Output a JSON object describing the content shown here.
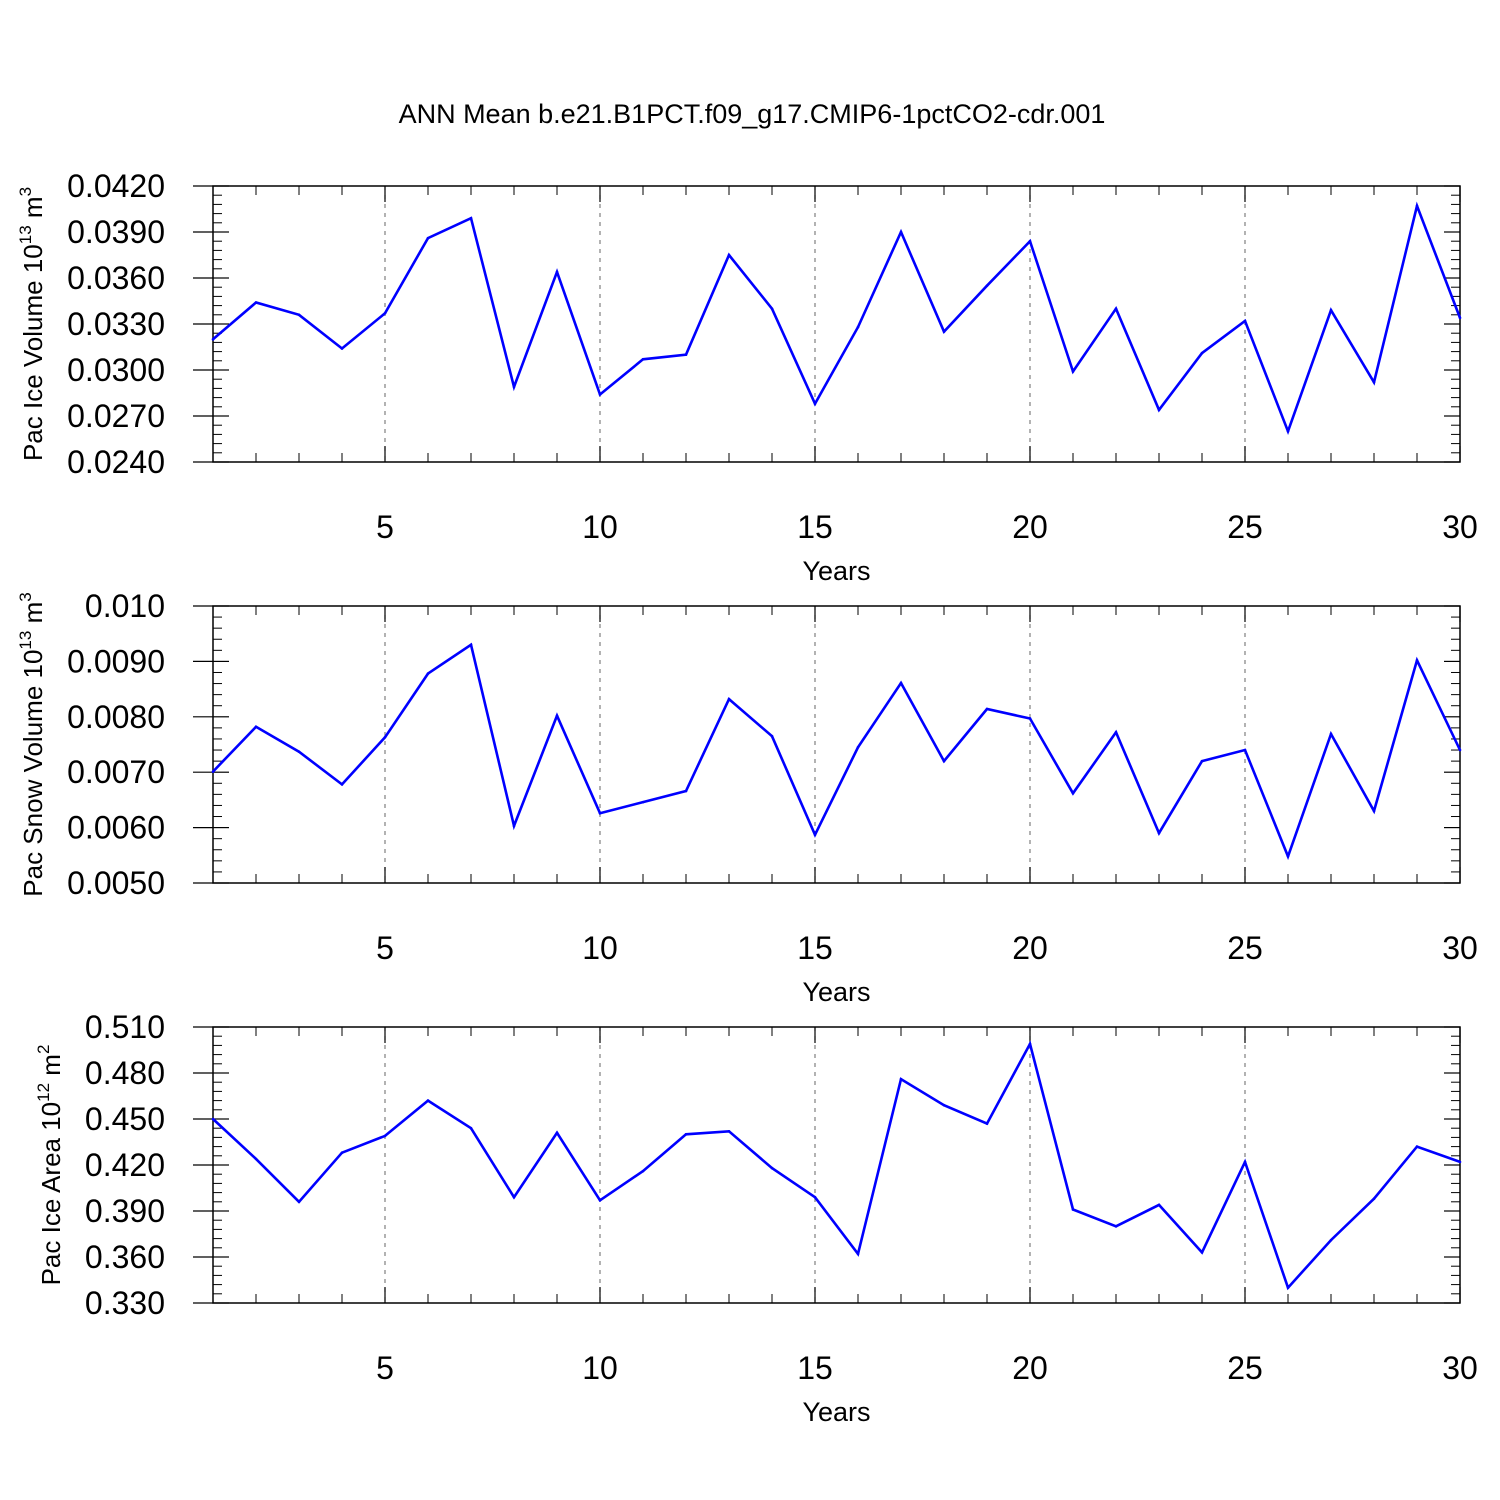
{
  "title": "ANN Mean b.e21.B1PCT.f09_g17.CMIP6-1pctCO2-cdr.001",
  "colors": {
    "line": "#0000ff",
    "axis": "#000000",
    "grid": "#808080"
  },
  "chart_data": [
    {
      "type": "line",
      "title": "ANN Mean b.e21.B1PCT.f09_g17.CMIP6-1pctCO2-cdr.001",
      "xlabel": "Years",
      "ylabel": {
        "prefix": "Pac Ice Volume 10",
        "exp": "13",
        "unit": " m",
        "unit_exp": "3"
      },
      "xlim": [
        1,
        30
      ],
      "ylim": [
        0.024,
        0.042
      ],
      "xticks": [
        5,
        10,
        15,
        20,
        25,
        30
      ],
      "xtick_labels": [
        "5",
        "10",
        "15",
        "20",
        "25",
        "30"
      ],
      "yticks": [
        0.024,
        0.027,
        0.03,
        0.033,
        0.036,
        0.039,
        0.042
      ],
      "ytick_labels": [
        "0.0240",
        "0.0270",
        "0.0300",
        "0.0330",
        "0.0360",
        "0.0390",
        "0.0420"
      ],
      "grid": "dashed vertical lines at x tick marks",
      "x": [
        1,
        2,
        3,
        4,
        5,
        6,
        7,
        8,
        9,
        10,
        11,
        12,
        13,
        14,
        15,
        16,
        17,
        18,
        19,
        20,
        21,
        22,
        23,
        24,
        25,
        26,
        27,
        28,
        29,
        30
      ],
      "values": [
        0.032,
        0.0344,
        0.0336,
        0.0314,
        0.0337,
        0.0386,
        0.0399,
        0.0289,
        0.0364,
        0.0284,
        0.0307,
        0.031,
        0.0375,
        0.034,
        0.0278,
        0.0328,
        0.039,
        0.0325,
        0.0355,
        0.0384,
        0.0299,
        0.034,
        0.0274,
        0.0311,
        0.0332,
        0.026,
        0.0339,
        0.0292,
        0.0407,
        0.0334
      ]
    },
    {
      "type": "line",
      "xlabel": "Years",
      "ylabel": {
        "prefix": "Pac Snow Volume 10",
        "exp": "13",
        "unit": " m",
        "unit_exp": "3"
      },
      "xlim": [
        1,
        30
      ],
      "ylim": [
        0.005,
        0.01
      ],
      "xticks": [
        5,
        10,
        15,
        20,
        25,
        30
      ],
      "xtick_labels": [
        "5",
        "10",
        "15",
        "20",
        "25",
        "30"
      ],
      "yticks": [
        0.005,
        0.006,
        0.007,
        0.008,
        0.009,
        0.01
      ],
      "ytick_labels": [
        "0.0050",
        "0.0060",
        "0.0070",
        "0.0080",
        "0.0090",
        "0.010"
      ],
      "grid": "dashed vertical lines at x tick marks",
      "x": [
        1,
        2,
        3,
        4,
        5,
        6,
        7,
        8,
        9,
        10,
        11,
        12,
        13,
        14,
        15,
        16,
        17,
        18,
        19,
        20,
        21,
        22,
        23,
        24,
        25,
        26,
        27,
        28,
        29,
        30
      ],
      "values": [
        0.00701,
        0.00782,
        0.00737,
        0.00678,
        0.00763,
        0.00878,
        0.0093,
        0.00603,
        0.00802,
        0.00626,
        0.00646,
        0.00666,
        0.00832,
        0.00765,
        0.00587,
        0.00745,
        0.00861,
        0.0072,
        0.00814,
        0.00797,
        0.00662,
        0.00772,
        0.0059,
        0.0072,
        0.0074,
        0.00548,
        0.00769,
        0.0063,
        0.00902,
        0.0074
      ]
    },
    {
      "type": "line",
      "xlabel": "Years",
      "ylabel": {
        "prefix": "Pac Ice Area 10",
        "exp": "12",
        "unit": " m",
        "unit_exp": "2"
      },
      "xlim": [
        1,
        30
      ],
      "ylim": [
        0.33,
        0.51
      ],
      "xticks": [
        5,
        10,
        15,
        20,
        25,
        30
      ],
      "xtick_labels": [
        "5",
        "10",
        "15",
        "20",
        "25",
        "30"
      ],
      "yticks": [
        0.33,
        0.36,
        0.39,
        0.42,
        0.45,
        0.48,
        0.51
      ],
      "ytick_labels": [
        "0.330",
        "0.360",
        "0.390",
        "0.420",
        "0.450",
        "0.480",
        "0.510"
      ],
      "grid": "dashed vertical lines at x tick marks",
      "x": [
        1,
        2,
        3,
        4,
        5,
        6,
        7,
        8,
        9,
        10,
        11,
        12,
        13,
        14,
        15,
        16,
        17,
        18,
        19,
        20,
        21,
        22,
        23,
        24,
        25,
        26,
        27,
        28,
        29,
        30
      ],
      "values": [
        0.45,
        0.424,
        0.396,
        0.428,
        0.439,
        0.462,
        0.444,
        0.399,
        0.441,
        0.397,
        0.416,
        0.44,
        0.442,
        0.418,
        0.399,
        0.362,
        0.476,
        0.459,
        0.447,
        0.499,
        0.391,
        0.38,
        0.394,
        0.363,
        0.422,
        0.34,
        0.371,
        0.398,
        0.432,
        0.422
      ]
    }
  ]
}
